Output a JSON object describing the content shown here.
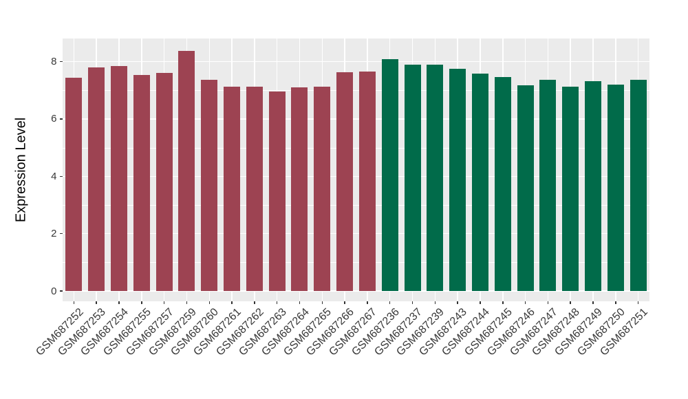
{
  "figure": {
    "background_color": "#FFFFFF",
    "panel_background_color": "#EBEBEB",
    "gridline_color": "#FFFFFF",
    "axis_text_color": "#383838",
    "axis_title_color": "#000000"
  },
  "chart_data": {
    "type": "bar",
    "title": "",
    "xlabel": "",
    "ylabel": "Expression Level",
    "ylim": [
      0,
      8.8
    ],
    "yticks": [
      0,
      2,
      4,
      6,
      8
    ],
    "grid": "on",
    "legend": "none",
    "x_tick_rotation_deg": 45,
    "categories": [
      "GSM687252",
      "GSM687253",
      "GSM687254",
      "GSM687255",
      "GSM687257",
      "GSM687259",
      "GSM687260",
      "GSM687261",
      "GSM687262",
      "GSM687263",
      "GSM687264",
      "GSM687265",
      "GSM687266",
      "GSM687267",
      "GSM687236",
      "GSM687237",
      "GSM687239",
      "GSM687243",
      "GSM687244",
      "GSM687245",
      "GSM687246",
      "GSM687247",
      "GSM687248",
      "GSM687249",
      "GSM687250",
      "GSM687251"
    ],
    "values": [
      7.45,
      7.81,
      7.85,
      7.53,
      7.6,
      8.37,
      7.36,
      7.13,
      7.13,
      6.97,
      7.1,
      7.13,
      7.63,
      7.65,
      8.08,
      7.9,
      7.9,
      7.76,
      7.58,
      7.46,
      7.18,
      7.36,
      7.13,
      7.33,
      7.21,
      7.37
    ],
    "bar_groups": [
      0,
      0,
      0,
      0,
      0,
      0,
      0,
      0,
      0,
      0,
      0,
      0,
      0,
      0,
      1,
      1,
      1,
      1,
      1,
      1,
      1,
      1,
      1,
      1,
      1,
      1
    ],
    "group_colors": [
      "#9D4352",
      "#016B4A"
    ]
  }
}
